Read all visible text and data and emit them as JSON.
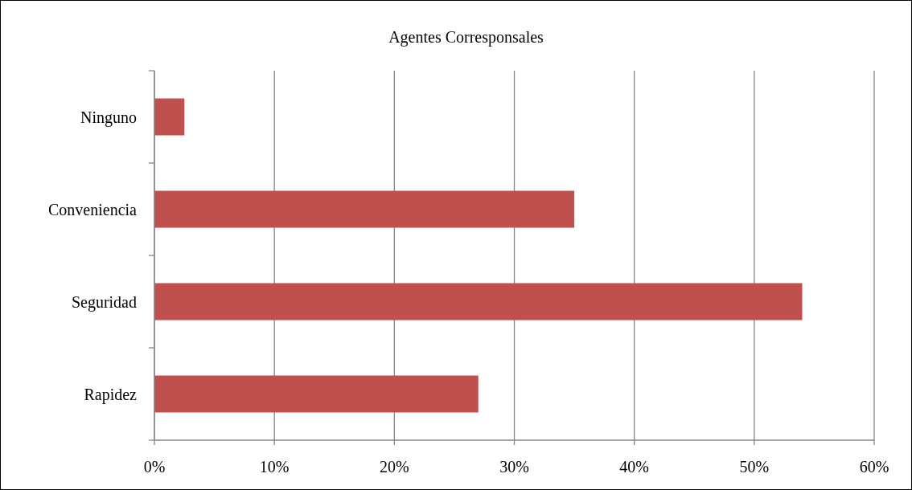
{
  "chart_data": {
    "type": "bar",
    "title": "Agentes Corresponsales",
    "orientation": "horizontal",
    "categories": [
      "Ninguno",
      "Conveniencia",
      "Seguridad",
      "Rapidez"
    ],
    "values": [
      2.5,
      35,
      54,
      27
    ],
    "color": "#c0504d",
    "xlim": [
      0,
      60
    ],
    "xticks": [
      {
        "value": 0,
        "label": "0%"
      },
      {
        "value": 10,
        "label": "10%"
      },
      {
        "value": 20,
        "label": "20%"
      },
      {
        "value": 30,
        "label": "30%"
      },
      {
        "value": 40,
        "label": "40%"
      },
      {
        "value": 50,
        "label": "50%"
      },
      {
        "value": 60,
        "label": "60%"
      }
    ],
    "grid": "x"
  }
}
